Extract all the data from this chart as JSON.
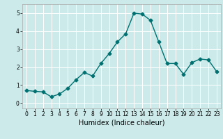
{
  "x": [
    0,
    1,
    2,
    3,
    4,
    5,
    6,
    7,
    8,
    9,
    10,
    11,
    12,
    13,
    14,
    15,
    16,
    17,
    18,
    19,
    20,
    21,
    22,
    23
  ],
  "y": [
    0.7,
    0.65,
    0.62,
    0.35,
    0.5,
    0.82,
    1.3,
    1.7,
    1.5,
    2.2,
    2.75,
    3.4,
    3.85,
    5.0,
    4.95,
    4.6,
    3.4,
    2.2,
    2.2,
    1.6,
    2.25,
    2.45,
    2.4,
    1.75
  ],
  "line_color": "#007070",
  "marker": "D",
  "markersize": 2.5,
  "linewidth": 1.0,
  "xlabel": "Humidex (Indice chaleur)",
  "xlim": [
    -0.5,
    23.5
  ],
  "ylim": [
    -0.3,
    5.5
  ],
  "yticks": [
    0,
    1,
    2,
    3,
    4,
    5
  ],
  "xticks": [
    0,
    1,
    2,
    3,
    4,
    5,
    6,
    7,
    8,
    9,
    10,
    11,
    12,
    13,
    14,
    15,
    16,
    17,
    18,
    19,
    20,
    21,
    22,
    23
  ],
  "bg_color": "#cceaea",
  "grid_color": "#ffffff",
  "tick_label_size": 5.5,
  "xlabel_size": 7.0,
  "spine_color": "#aaaaaa"
}
